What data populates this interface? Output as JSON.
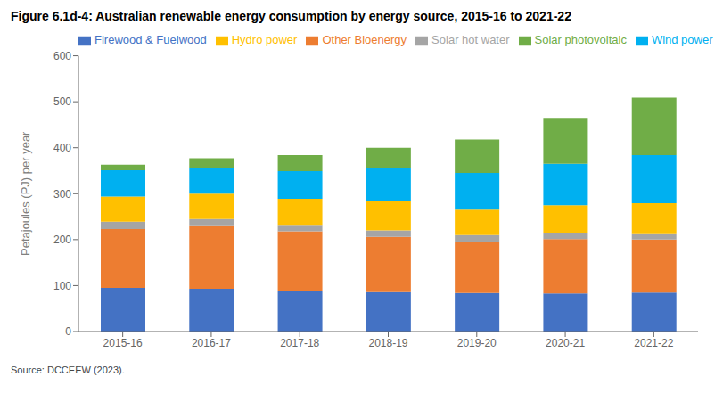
{
  "chart_data": {
    "type": "bar",
    "title": "Figure 6.1d-4: Australian renewable energy consumption by energy source, 2015-16 to 2021-22",
    "ylabel": "Petajoules (PJ) per year",
    "source": "Source: DCCEEW (2023).",
    "categories": [
      "2015-16",
      "2016-17",
      "2017-18",
      "2018-19",
      "2019-20",
      "2020-21",
      "2021-22"
    ],
    "series": [
      {
        "name": "Firewood & Fuelwood",
        "color": "#4472C4",
        "values": [
          95,
          93,
          88,
          86,
          84,
          83,
          85
        ]
      },
      {
        "name": "Other Bioenergy",
        "color": "#ED7D31",
        "values": [
          128,
          138,
          130,
          120,
          112,
          118,
          115
        ]
      },
      {
        "name": "Solar hot water",
        "color": "#A5A5A5",
        "values": [
          16,
          14,
          14,
          14,
          14,
          14,
          14
        ]
      },
      {
        "name": "Hydro power",
        "color": "#FFC000",
        "values": [
          55,
          55,
          57,
          65,
          55,
          60,
          65
        ]
      },
      {
        "name": "Wind power",
        "color": "#00B0F0",
        "values": [
          57,
          57,
          60,
          70,
          80,
          90,
          105
        ]
      },
      {
        "name": "Solar photovoltaic",
        "color": "#70AD47",
        "values": [
          12,
          20,
          35,
          45,
          73,
          100,
          125
        ]
      }
    ],
    "ylim": [
      0,
      600
    ],
    "yticks": [
      0,
      100,
      200,
      300,
      400,
      500,
      600
    ],
    "stacked": true,
    "legend": "top",
    "grid": false
  }
}
